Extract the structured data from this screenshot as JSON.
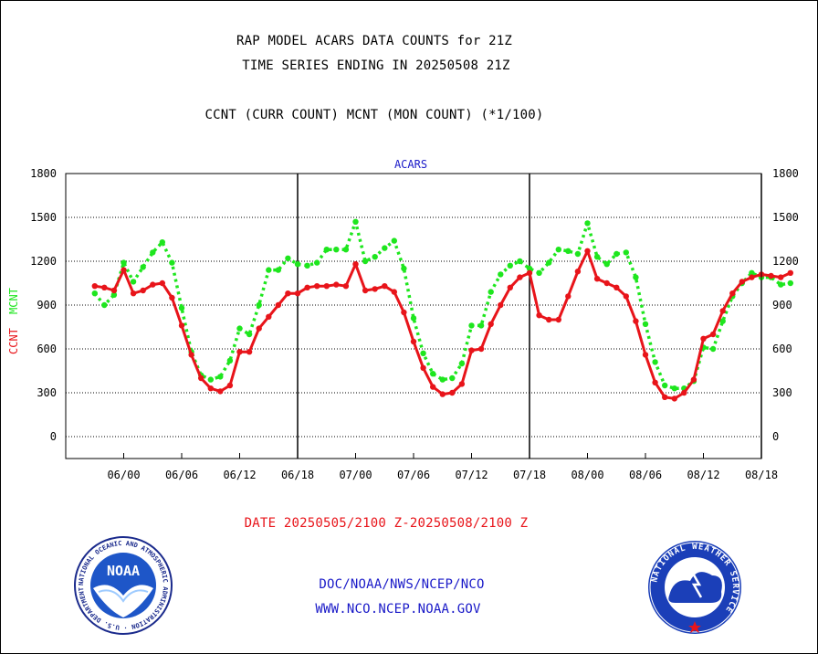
{
  "titles": {
    "line1": "RAP MODEL ACARS DATA COUNTS for 21Z",
    "line2": "TIME SERIES ENDING IN 20250508 21Z",
    "line3": "CCNT (CURR COUNT) MCNT (MON COUNT) (*1/100)"
  },
  "footer": {
    "date_range": "DATE 20250505/2100 Z-20250508/2100 Z",
    "org": "DOC/NOAA/NWS/NCEP/NCO",
    "url": "WWW.NCO.NCEP.NOAA.GOV"
  },
  "logos": {
    "noaa_left": "NOAA",
    "noaa_ring_text": "NATIONAL OCEANIC AND ATMOSPHERIC ADMINISTRATION · U.S. DEPARTMENT OF COMMERCE",
    "nws_ring_text": "NATIONAL WEATHER SERVICE"
  },
  "colors": {
    "ccnt": "#e8141a",
    "mcnt": "#1ee61e",
    "label_blue": "#1a1ac8"
  },
  "chart_data": {
    "type": "line",
    "title": "ACARS",
    "ylabel_left": [
      "CCNT",
      "MCNT"
    ],
    "ylim": [
      -150,
      1800
    ],
    "yticks": [
      0,
      300,
      600,
      900,
      1200,
      1500,
      1800
    ],
    "x_unit": "hour index (each tick = 6h)",
    "xlim": [
      -3,
      69
    ],
    "xticks": [
      {
        "x": 3,
        "label": "06/00"
      },
      {
        "x": 9,
        "label": "06/06"
      },
      {
        "x": 15,
        "label": "06/12"
      },
      {
        "x": 21,
        "label": "06/18"
      },
      {
        "x": 27,
        "label": "07/00"
      },
      {
        "x": 33,
        "label": "07/06"
      },
      {
        "x": 39,
        "label": "07/12"
      },
      {
        "x": 45,
        "label": "07/18"
      },
      {
        "x": 51,
        "label": "08/00"
      },
      {
        "x": 57,
        "label": "08/06"
      },
      {
        "x": 63,
        "label": "08/12"
      },
      {
        "x": 69,
        "label": "08/18"
      }
    ],
    "day_separators": [
      21,
      45,
      69
    ],
    "grid": "horizontal dotted",
    "series": [
      {
        "name": "CCNT",
        "color": "#e8141a",
        "values": [
          1030,
          1020,
          1000,
          1140,
          980,
          1000,
          1040,
          1050,
          950,
          760,
          560,
          400,
          330,
          310,
          350,
          580,
          580,
          740,
          820,
          900,
          980,
          980,
          1020,
          1030,
          1030,
          1040,
          1030,
          1180,
          1000,
          1010,
          1030,
          990,
          850,
          650,
          470,
          340,
          290,
          300,
          360,
          590,
          600,
          770,
          900,
          1020,
          1090,
          1120,
          830,
          800,
          800,
          960,
          1130,
          1270,
          1080,
          1050,
          1020,
          960,
          790,
          560,
          370,
          270,
          260,
          300,
          390,
          670,
          700,
          860,
          980,
          1060,
          1090,
          1110,
          1100,
          1090,
          1120
        ]
      },
      {
        "name": "MCNT",
        "color": "#1ee61e",
        "values": [
          980,
          900,
          970,
          1190,
          1060,
          1160,
          1260,
          1330,
          1190,
          880,
          580,
          420,
          390,
          410,
          520,
          740,
          700,
          900,
          1140,
          1140,
          1220,
          1180,
          1170,
          1190,
          1280,
          1280,
          1280,
          1470,
          1200,
          1230,
          1290,
          1340,
          1150,
          810,
          570,
          430,
          390,
          400,
          500,
          760,
          760,
          990,
          1110,
          1170,
          1200,
          1150,
          1120,
          1190,
          1280,
          1270,
          1250,
          1460,
          1230,
          1180,
          1250,
          1260,
          1090,
          770,
          510,
          350,
          330,
          330,
          380,
          610,
          600,
          790,
          960,
          1050,
          1120,
          1090,
          1090,
          1040,
          1050
        ]
      }
    ]
  }
}
